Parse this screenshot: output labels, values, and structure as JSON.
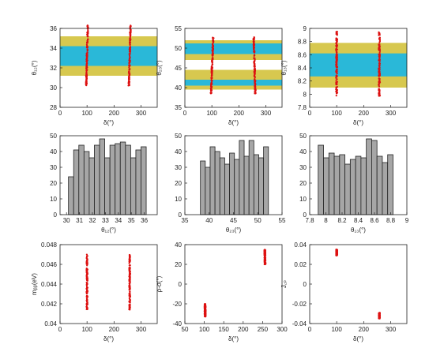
{
  "colors": {
    "outer_band": "#d7c84f",
    "inner_band": "#2ab8d8",
    "points": "#dd1111",
    "bars": "#a6a6a6",
    "bar_edge": "#222222"
  },
  "chart_data": [
    {
      "type": "scatter",
      "xlabel": "δ(°)",
      "ylabel": "θ₁₂(°)",
      "xlim": [
        0,
        360
      ],
      "ylim": [
        28,
        36
      ],
      "xticks": [
        0,
        100,
        200,
        300
      ],
      "yticks": [
        28,
        30,
        32,
        34,
        36
      ],
      "bands": [
        {
          "range": [
            31.2,
            35.2
          ],
          "color": "outer"
        },
        {
          "range": [
            32.2,
            34.2
          ],
          "color": "inner"
        }
      ],
      "clusters": [
        {
          "x": 100,
          "xspread": 4,
          "y_range": [
            30.2,
            36.3
          ],
          "slope": 6
        },
        {
          "x": 258,
          "xspread": 4,
          "y_range": [
            30.2,
            36.3
          ],
          "slope": 6
        }
      ]
    },
    {
      "type": "scatter",
      "xlabel": "δ(°)",
      "ylabel": "θ₂₃(°)",
      "xlim": [
        0,
        360
      ],
      "ylim": [
        35,
        55
      ],
      "xticks": [
        0,
        100,
        200,
        300
      ],
      "yticks": [
        35,
        40,
        45,
        50,
        55
      ],
      "bands": [
        {
          "range": [
            39.5,
            44.5
          ],
          "color": "outer"
        },
        {
          "range": [
            40.5,
            42.0
          ],
          "color": "inner"
        },
        {
          "range": [
            47.0,
            52.0
          ],
          "color": "outer"
        },
        {
          "range": [
            48.5,
            51.2
          ],
          "color": "inner"
        }
      ],
      "clusters": [
        {
          "x": 101,
          "xspread": 4,
          "y_range": [
            38.5,
            52.8
          ],
          "slope": 8
        },
        {
          "x": 258,
          "xspread": 4,
          "y_range": [
            38.5,
            52.8
          ],
          "slope": -6
        }
      ]
    },
    {
      "type": "scatter",
      "xlabel": "δ(°)",
      "ylabel": "θ₁₃(°)",
      "xlim": [
        0,
        360
      ],
      "ylim": [
        7.8,
        9.0
      ],
      "xticks": [
        0,
        100,
        200,
        300
      ],
      "yticks": [
        7.8,
        8.0,
        8.2,
        8.4,
        8.6,
        8.8,
        9.0
      ],
      "bands": [
        {
          "range": [
            8.1,
            8.78
          ],
          "color": "outer"
        },
        {
          "range": [
            8.27,
            8.62
          ],
          "color": "inner"
        }
      ],
      "clusters": [
        {
          "x": 100,
          "xspread": 5,
          "y_range": [
            7.97,
            8.95
          ],
          "slope": 0
        },
        {
          "x": 258,
          "xspread": 5,
          "y_range": [
            7.97,
            8.95
          ],
          "slope": 0
        }
      ]
    },
    {
      "type": "bar",
      "xlabel": "θ₁₂(°)",
      "ylabel": "",
      "xlim": [
        29.5,
        37
      ],
      "ylim": [
        0,
        50
      ],
      "xticks": [
        30,
        31,
        32,
        33,
        34,
        35,
        36
      ],
      "yticks": [
        0,
        10,
        20,
        30,
        40,
        50
      ],
      "bin_start": 30.15,
      "bin_width": 0.4,
      "values": [
        24,
        41,
        44,
        40,
        36,
        44,
        48,
        36,
        44,
        45,
        46,
        44,
        36,
        41,
        43
      ]
    },
    {
      "type": "bar",
      "xlabel": "θ₂₃(°)",
      "ylabel": "",
      "xlim": [
        35,
        55
      ],
      "ylim": [
        0,
        50
      ],
      "xticks": [
        35,
        40,
        45,
        50,
        55
      ],
      "yticks": [
        0,
        10,
        20,
        30,
        40,
        50
      ],
      "bin_start": 38.2,
      "bin_width": 1.0,
      "values": [
        34,
        30,
        43,
        40,
        36,
        32,
        39,
        35,
        47,
        37,
        47,
        38,
        36,
        43
      ]
    },
    {
      "type": "bar",
      "xlabel": "θ₁₃(°)",
      "ylabel": "",
      "xlim": [
        7.8,
        9.0
      ],
      "ylim": [
        0,
        50
      ],
      "xticks": [
        7.8,
        8.0,
        8.2,
        8.4,
        8.6,
        8.8,
        9.0
      ],
      "yticks": [
        0,
        10,
        20,
        30,
        40,
        50
      ],
      "bin_start": 7.905,
      "bin_width": 0.066,
      "values": [
        44,
        36,
        39,
        37,
        38,
        32,
        35,
        37,
        36,
        48,
        47,
        37,
        33,
        38
      ]
    },
    {
      "type": "scatter",
      "xlabel": "δ(°)",
      "ylabel": "mᵦᵦ(eV)",
      "xlim": [
        0,
        360
      ],
      "ylim": [
        0.04,
        0.048
      ],
      "xticks": [
        0,
        100,
        200,
        300
      ],
      "yticks": [
        0.04,
        0.042,
        0.044,
        0.046,
        0.048
      ],
      "clusters": [
        {
          "x": 100,
          "xspread": 4,
          "y_range": [
            0.0414,
            0.047
          ],
          "slope": 0
        },
        {
          "x": 258,
          "xspread": 4,
          "y_range": [
            0.0414,
            0.047
          ],
          "slope": 0
        }
      ]
    },
    {
      "type": "scatter",
      "xlabel": "δ(°)",
      "ylabel": "ρ-σ(°)",
      "xlim": [
        50,
        300
      ],
      "ylim": [
        -40,
        40
      ],
      "xticks": [
        50,
        100,
        150,
        200,
        250,
        300
      ],
      "yticks": [
        -40,
        -20,
        0,
        20,
        40
      ],
      "clusters": [
        {
          "x": 102,
          "xspread": 3,
          "y_range": [
            -33,
            -20
          ],
          "slope": -0.4
        },
        {
          "x": 256,
          "xspread": 3,
          "y_range": [
            20,
            35
          ],
          "slope": -0.4
        }
      ]
    },
    {
      "type": "scatter",
      "xlabel": "δ(°)",
      "ylabel": "J꜀ₚ",
      "xlim": [
        0,
        360
      ],
      "ylim": [
        -0.04,
        0.04
      ],
      "xticks": [
        0,
        100,
        200,
        300
      ],
      "yticks": [
        -0.04,
        -0.02,
        0,
        0.02,
        0.04
      ],
      "clusters": [
        {
          "x": 100,
          "xspread": 4,
          "y_range": [
            0.029,
            0.035
          ],
          "slope": 0
        },
        {
          "x": 258,
          "xspread": 4,
          "y_range": [
            -0.035,
            -0.029
          ],
          "slope": 0
        }
      ]
    }
  ]
}
